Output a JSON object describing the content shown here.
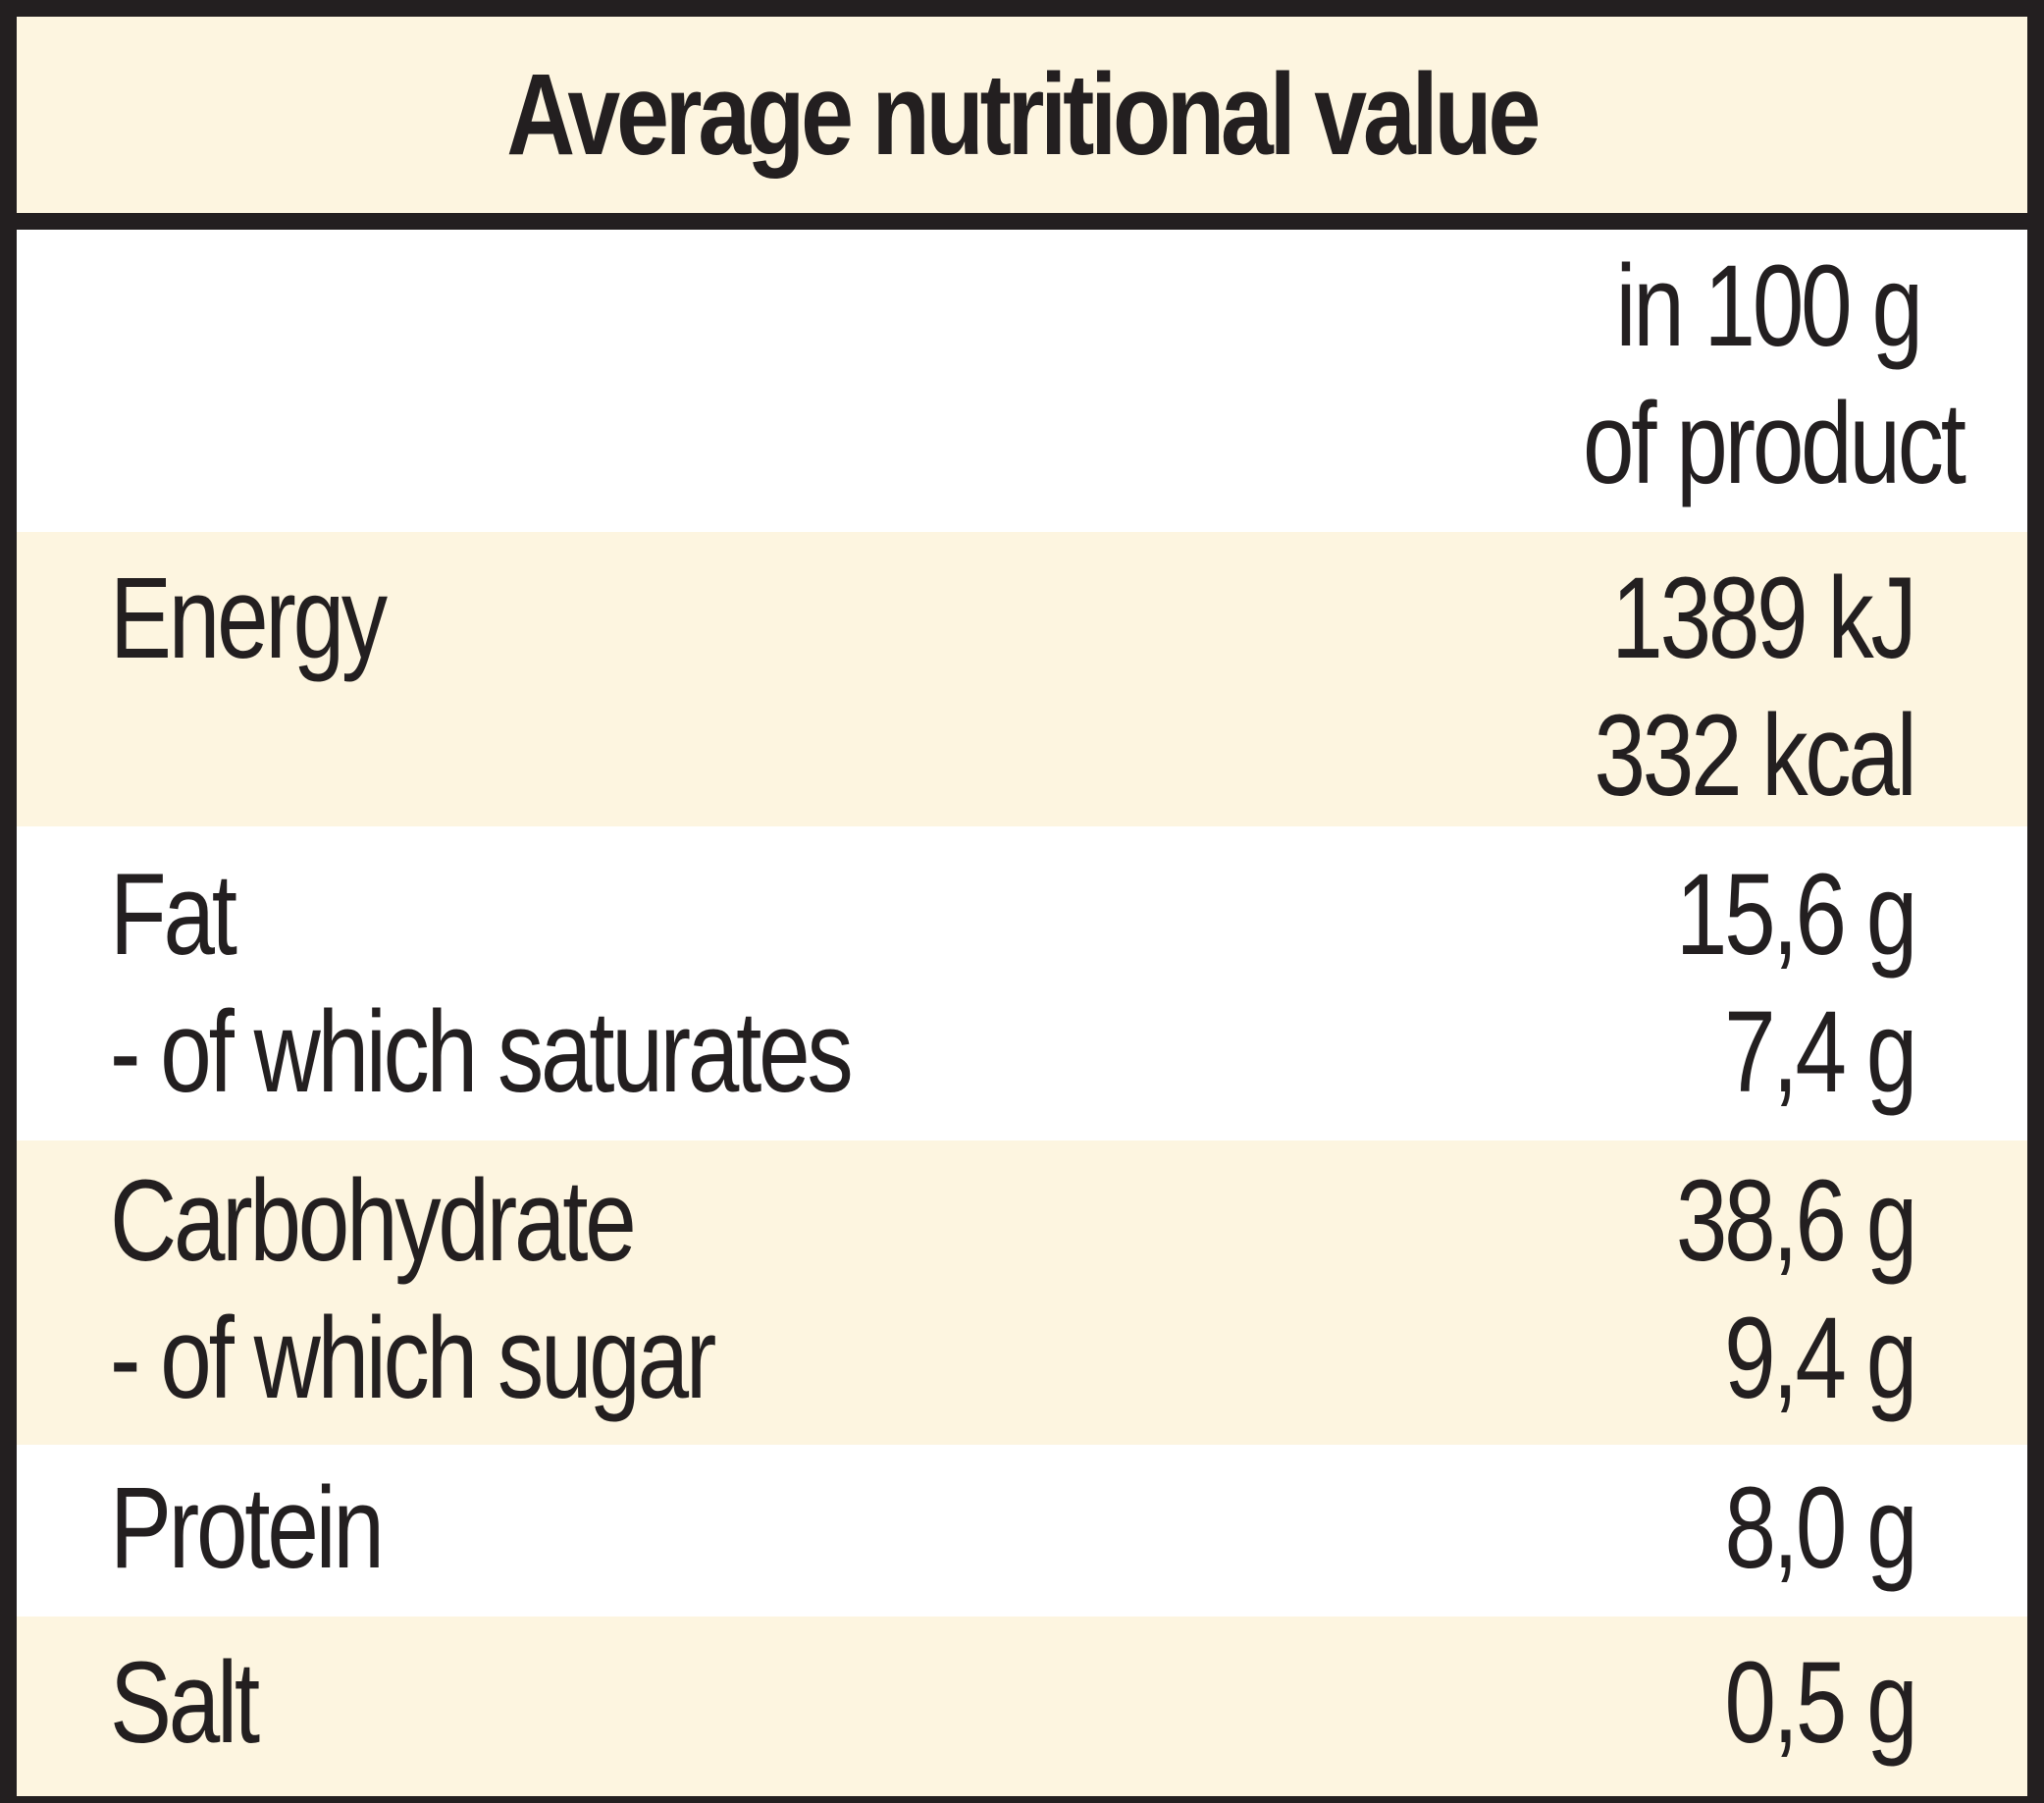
{
  "table": {
    "title": "Average nutritional value",
    "column_header": {
      "line1": "in 100 g",
      "line2": "of product"
    },
    "rows": [
      {
        "labels": [
          "Energy"
        ],
        "values": [
          "1389 kJ",
          "332 kcal"
        ],
        "shaded": true
      },
      {
        "labels": [
          "Fat",
          "- of which saturates"
        ],
        "values": [
          "15,6 g",
          "7,4 g"
        ],
        "shaded": false
      },
      {
        "labels": [
          "Carbohydrate",
          "- of which sugar"
        ],
        "values": [
          "38,6 g",
          "9,4 g"
        ],
        "shaded": true
      },
      {
        "labels": [
          "Protein"
        ],
        "values": [
          "8,0 g"
        ],
        "shaded": false
      },
      {
        "labels": [
          "Salt"
        ],
        "values": [
          "0,5 g"
        ],
        "shaded": true
      }
    ]
  },
  "colors": {
    "border": "#231f20",
    "shade": "#fdf5e0",
    "background": "#ffffff",
    "text": "#231f20"
  }
}
